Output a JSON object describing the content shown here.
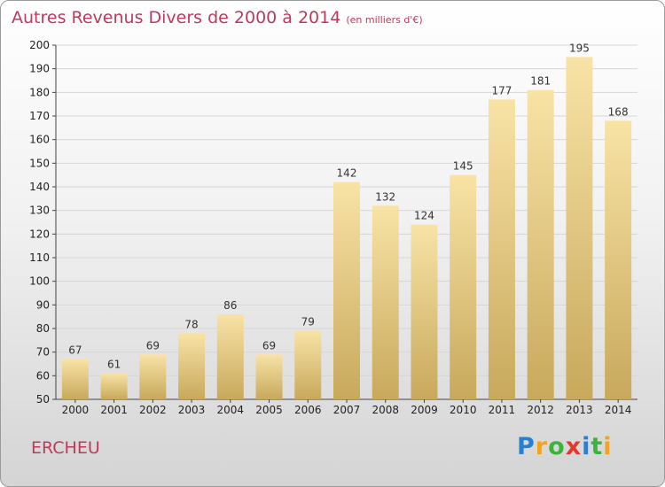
{
  "title": {
    "main": "Autres Revenus Divers de 2000 à 2014",
    "unit": "(en milliers d'€)"
  },
  "commune": "ERCHEU",
  "logo": {
    "letters": [
      "P",
      "r",
      "o",
      "x",
      "i",
      "t",
      "i"
    ],
    "colors": [
      "#2a7fd0",
      "#f2a21c",
      "#3bb43b",
      "#e8362d",
      "#2a7fd0",
      "#3bb43b",
      "#f2a21c"
    ]
  },
  "colors": {
    "bar_light": "#f8e3a6",
    "bar_dark": "#c8a95c",
    "title": "#c0395a"
  },
  "chart_data": {
    "type": "bar",
    "title": "Autres Revenus Divers de 2000 à 2014",
    "xlabel": "",
    "ylabel": "",
    "categories": [
      "2000",
      "2001",
      "2002",
      "2003",
      "2004",
      "2005",
      "2006",
      "2007",
      "2008",
      "2009",
      "2010",
      "2011",
      "2012",
      "2013",
      "2014"
    ],
    "values": [
      67,
      61,
      69,
      78,
      86,
      69,
      79,
      142,
      132,
      124,
      145,
      177,
      181,
      195,
      168
    ],
    "ylim": [
      50,
      200
    ],
    "yticks": [
      50,
      60,
      70,
      80,
      90,
      100,
      110,
      120,
      130,
      140,
      150,
      160,
      170,
      180,
      190,
      200
    ],
    "grid": true
  }
}
